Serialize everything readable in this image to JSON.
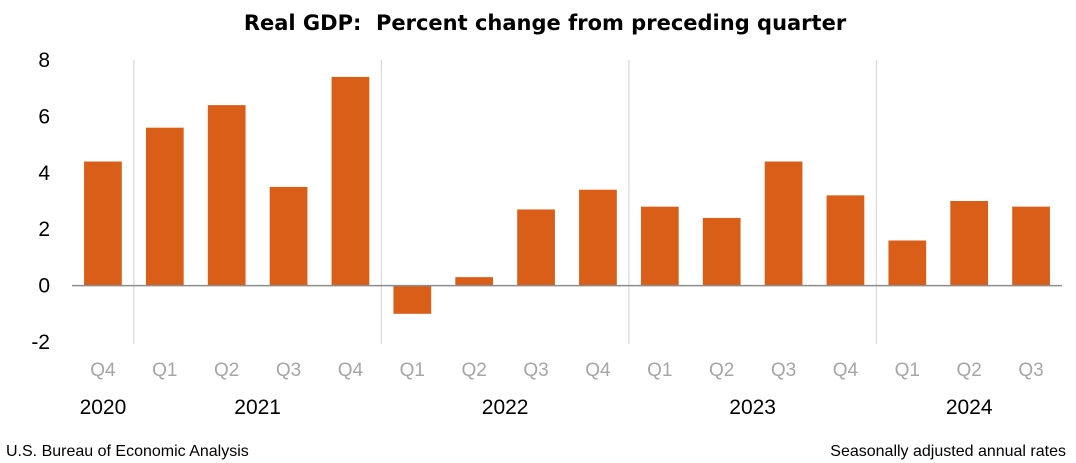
{
  "chart_data": {
    "type": "bar",
    "title": "Real GDP:  Percent change from preceding quarter",
    "xlabel": "",
    "ylabel": "",
    "ylim": [
      -2,
      8
    ],
    "yticks": [
      8,
      6,
      4,
      2,
      0,
      -2
    ],
    "grid": false,
    "legend": null,
    "bar_color": "#d95f18",
    "categories": [
      "Q4",
      "Q1",
      "Q2",
      "Q3",
      "Q4",
      "Q1",
      "Q2",
      "Q3",
      "Q4",
      "Q1",
      "Q2",
      "Q3",
      "Q4",
      "Q1",
      "Q2",
      "Q3"
    ],
    "values": [
      4.4,
      5.6,
      6.4,
      3.5,
      7.4,
      -1.0,
      0.3,
      2.7,
      3.4,
      2.8,
      2.4,
      4.4,
      3.2,
      1.6,
      3.0,
      2.8
    ],
    "year_groups": [
      {
        "label": "2020",
        "start": 0,
        "count": 1
      },
      {
        "label": "2021",
        "start": 1,
        "count": 4
      },
      {
        "label": "2022",
        "start": 5,
        "count": 4
      },
      {
        "label": "2023",
        "start": 9,
        "count": 4
      },
      {
        "label": "2024",
        "start": 13,
        "count": 3
      }
    ],
    "source": "U.S. Bureau of Economic Analysis",
    "note": "Seasonally adjusted annual rates"
  }
}
